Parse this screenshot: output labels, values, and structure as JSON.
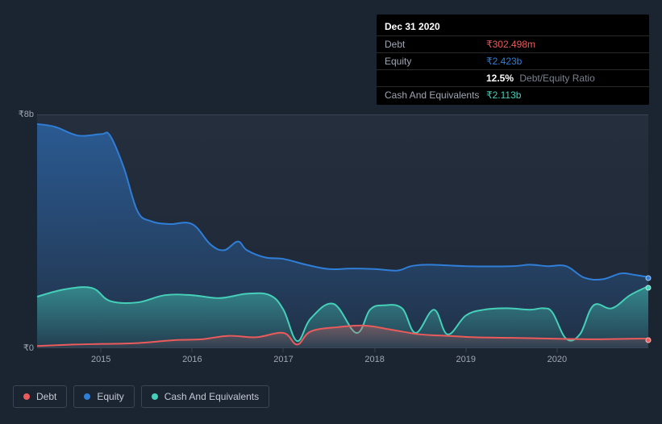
{
  "colors": {
    "background": "#1b2431",
    "plot_bg_top": "#242e3c",
    "plot_bg_bottom": "#1f2836",
    "grid": "#3a4556",
    "axis_text": "#a0a7b4",
    "debt": "#eb5b5b",
    "equity": "#2f7ed8",
    "cash": "#45d0b9",
    "tooltip_bg": "#000000"
  },
  "tooltip": {
    "date": "Dec 31 2020",
    "rows": [
      {
        "label": "Debt",
        "value": "₹302.498m",
        "colorKey": "debt"
      },
      {
        "label": "Equity",
        "value": "₹2.423b",
        "colorKey": "equity"
      }
    ],
    "ratio": {
      "pct": "12.5%",
      "label": "Debt/Equity Ratio"
    },
    "cash_row": {
      "label": "Cash And Equivalents",
      "value": "₹2.113b",
      "colorKey": "cash"
    }
  },
  "chart": {
    "type": "area",
    "ylim": [
      0,
      8
    ],
    "y_unit_suffix": "b",
    "y_ticks": [
      {
        "v": 8,
        "label": "₹8b"
      },
      {
        "v": 0,
        "label": "₹0"
      }
    ],
    "x_start": 2014.3,
    "x_end": 2021.0,
    "x_ticks": [
      2015,
      2016,
      2017,
      2018,
      2019,
      2020
    ],
    "series": {
      "equity": {
        "label": "Equity",
        "colorKey": "equity",
        "fill_opacity_top": 0.55,
        "fill_opacity_bottom": 0.1,
        "line_width": 2,
        "points": [
          [
            2014.3,
            7.7
          ],
          [
            2014.5,
            7.6
          ],
          [
            2014.75,
            7.3
          ],
          [
            2015.0,
            7.35
          ],
          [
            2015.1,
            7.3
          ],
          [
            2015.25,
            6.2
          ],
          [
            2015.4,
            4.7
          ],
          [
            2015.55,
            4.35
          ],
          [
            2015.75,
            4.25
          ],
          [
            2016.0,
            4.25
          ],
          [
            2016.2,
            3.55
          ],
          [
            2016.35,
            3.35
          ],
          [
            2016.5,
            3.65
          ],
          [
            2016.6,
            3.35
          ],
          [
            2016.8,
            3.1
          ],
          [
            2017.0,
            3.05
          ],
          [
            2017.25,
            2.85
          ],
          [
            2017.5,
            2.7
          ],
          [
            2017.75,
            2.72
          ],
          [
            2018.0,
            2.7
          ],
          [
            2018.25,
            2.65
          ],
          [
            2018.4,
            2.8
          ],
          [
            2018.6,
            2.85
          ],
          [
            2019.0,
            2.8
          ],
          [
            2019.5,
            2.8
          ],
          [
            2019.7,
            2.85
          ],
          [
            2019.9,
            2.8
          ],
          [
            2020.1,
            2.8
          ],
          [
            2020.3,
            2.4
          ],
          [
            2020.5,
            2.35
          ],
          [
            2020.7,
            2.55
          ],
          [
            2020.85,
            2.5
          ],
          [
            2021.0,
            2.42
          ]
        ]
      },
      "cash": {
        "label": "Cash And Equivalents",
        "colorKey": "cash",
        "fill_opacity_top": 0.5,
        "fill_opacity_bottom": 0.08,
        "line_width": 2,
        "points": [
          [
            2014.3,
            1.75
          ],
          [
            2014.6,
            2.0
          ],
          [
            2014.9,
            2.05
          ],
          [
            2015.1,
            1.6
          ],
          [
            2015.4,
            1.55
          ],
          [
            2015.7,
            1.8
          ],
          [
            2016.0,
            1.8
          ],
          [
            2016.3,
            1.7
          ],
          [
            2016.6,
            1.85
          ],
          [
            2016.85,
            1.8
          ],
          [
            2017.0,
            1.3
          ],
          [
            2017.15,
            0.22
          ],
          [
            2017.3,
            1.0
          ],
          [
            2017.55,
            1.5
          ],
          [
            2017.8,
            0.5
          ],
          [
            2017.95,
            1.3
          ],
          [
            2018.1,
            1.45
          ],
          [
            2018.3,
            1.35
          ],
          [
            2018.45,
            0.5
          ],
          [
            2018.65,
            1.3
          ],
          [
            2018.8,
            0.45
          ],
          [
            2019.0,
            1.1
          ],
          [
            2019.2,
            1.3
          ],
          [
            2019.45,
            1.35
          ],
          [
            2019.7,
            1.3
          ],
          [
            2019.85,
            1.35
          ],
          [
            2019.95,
            1.2
          ],
          [
            2020.1,
            0.3
          ],
          [
            2020.25,
            0.45
          ],
          [
            2020.4,
            1.45
          ],
          [
            2020.6,
            1.35
          ],
          [
            2020.8,
            1.8
          ],
          [
            2021.0,
            2.11
          ]
        ]
      },
      "debt": {
        "label": "Debt",
        "colorKey": "debt",
        "fill_opacity_top": 0.35,
        "fill_opacity_bottom": 0.05,
        "line_width": 2,
        "points": [
          [
            2014.3,
            0.05
          ],
          [
            2014.7,
            0.1
          ],
          [
            2015.0,
            0.12
          ],
          [
            2015.4,
            0.15
          ],
          [
            2015.8,
            0.25
          ],
          [
            2016.1,
            0.28
          ],
          [
            2016.4,
            0.4
          ],
          [
            2016.7,
            0.35
          ],
          [
            2017.0,
            0.5
          ],
          [
            2017.15,
            0.1
          ],
          [
            2017.3,
            0.55
          ],
          [
            2017.6,
            0.7
          ],
          [
            2017.9,
            0.75
          ],
          [
            2018.2,
            0.6
          ],
          [
            2018.5,
            0.45
          ],
          [
            2018.8,
            0.4
          ],
          [
            2019.1,
            0.35
          ],
          [
            2019.5,
            0.33
          ],
          [
            2020.0,
            0.3
          ],
          [
            2020.4,
            0.28
          ],
          [
            2020.8,
            0.3
          ],
          [
            2021.0,
            0.3
          ]
        ]
      }
    },
    "end_markers": [
      {
        "series": "equity",
        "x": 2021.0,
        "y": 2.42
      },
      {
        "series": "cash",
        "x": 2021.0,
        "y": 2.11
      },
      {
        "series": "debt",
        "x": 2021.0,
        "y": 0.3
      }
    ]
  },
  "legend": [
    {
      "label": "Debt",
      "colorKey": "debt"
    },
    {
      "label": "Equity",
      "colorKey": "equity"
    },
    {
      "label": "Cash And Equivalents",
      "colorKey": "cash"
    }
  ]
}
